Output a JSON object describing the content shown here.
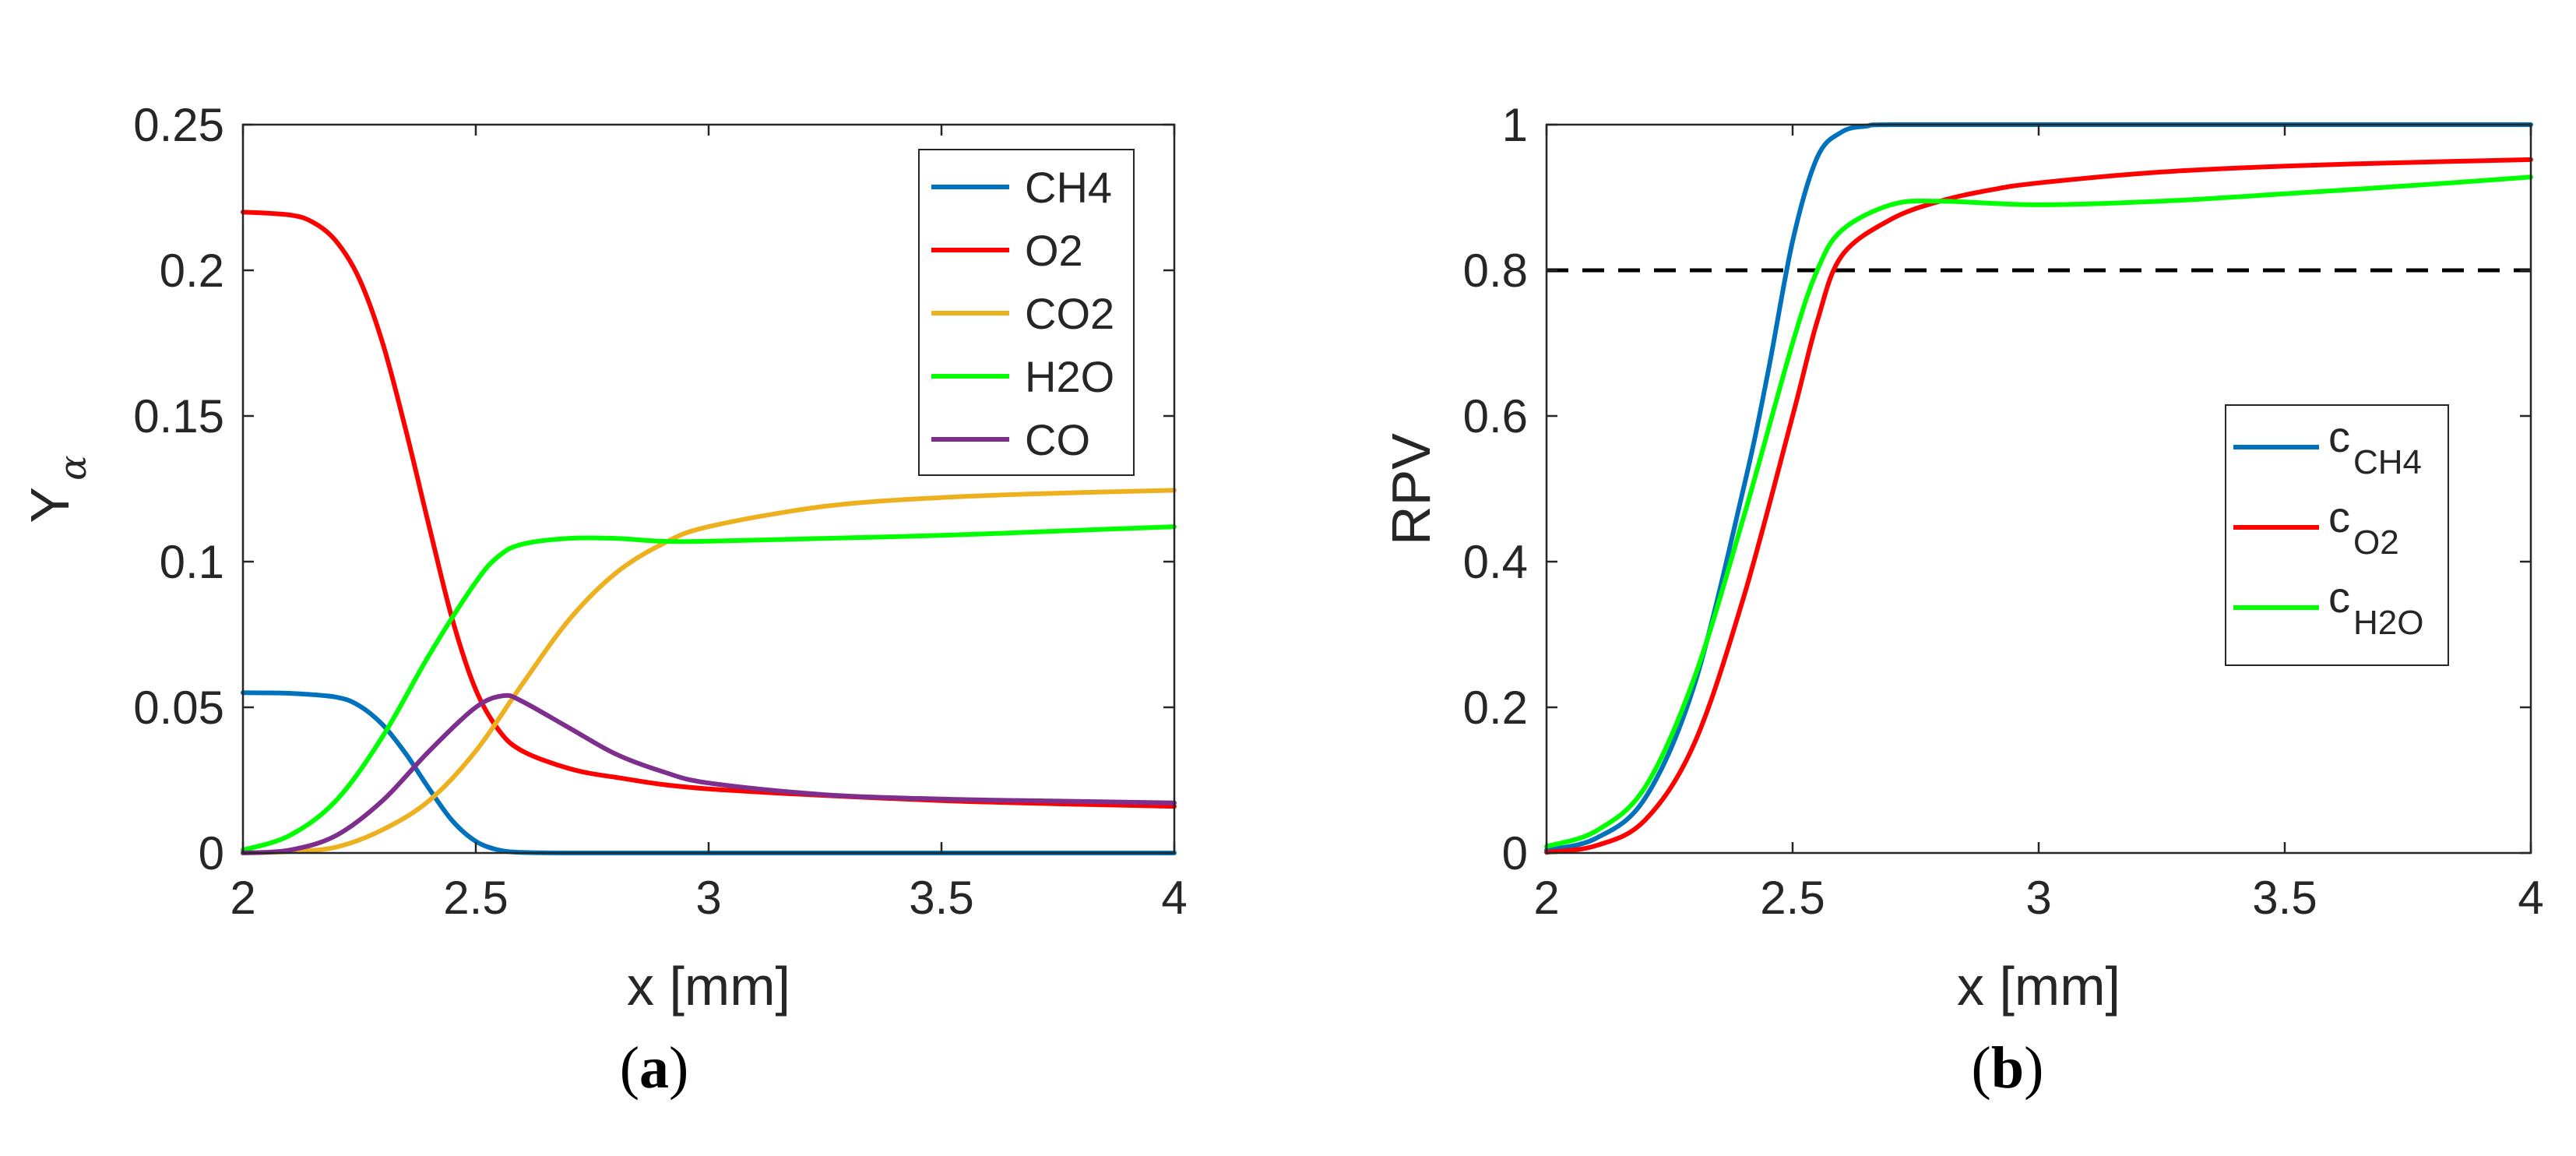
{
  "chart_data": [
    {
      "type": "line",
      "panel_label": {
        "open": "(",
        "letter": "a",
        "close": ")"
      },
      "xlabel": "x [mm]",
      "ylabel": {
        "main": "Y",
        "sub": "α"
      },
      "xlim": [
        2,
        4
      ],
      "ylim": [
        0,
        0.25
      ],
      "xticks": [
        2,
        2.5,
        3,
        3.5,
        4
      ],
      "xtick_labels": [
        "2",
        "2.5",
        "3",
        "3.5",
        "4"
      ],
      "yticks": [
        0,
        0.05,
        0.1,
        0.15,
        0.2,
        0.25
      ],
      "ytick_labels": [
        "0",
        "0.05",
        "0.1",
        "0.15",
        "0.2",
        "0.25"
      ],
      "grid": false,
      "legend_position": "top-right",
      "series": [
        {
          "name": "CH4",
          "label": "CH4",
          "color": "#0072BD",
          "points": [
            [
              2.0,
              0.055
            ],
            [
              2.1,
              0.0548
            ],
            [
              2.2,
              0.0535
            ],
            [
              2.25,
              0.0505
            ],
            [
              2.3,
              0.044
            ],
            [
              2.35,
              0.034
            ],
            [
              2.4,
              0.022
            ],
            [
              2.45,
              0.011
            ],
            [
              2.5,
              0.004
            ],
            [
              2.55,
              0.001
            ],
            [
              2.6,
              0.0002
            ],
            [
              2.7,
              0.0
            ],
            [
              3.0,
              0.0
            ],
            [
              3.5,
              0.0
            ],
            [
              4.0,
              0.0
            ]
          ]
        },
        {
          "name": "O2",
          "label": "O2",
          "color": "#FF0000",
          "points": [
            [
              2.0,
              0.22
            ],
            [
              2.1,
              0.219
            ],
            [
              2.15,
              0.2165
            ],
            [
              2.2,
              0.21
            ],
            [
              2.25,
              0.197
            ],
            [
              2.3,
              0.175
            ],
            [
              2.35,
              0.145
            ],
            [
              2.4,
              0.112
            ],
            [
              2.45,
              0.08
            ],
            [
              2.5,
              0.056
            ],
            [
              2.55,
              0.042
            ],
            [
              2.6,
              0.035
            ],
            [
              2.7,
              0.029
            ],
            [
              2.8,
              0.026
            ],
            [
              3.0,
              0.022
            ],
            [
              3.5,
              0.018
            ],
            [
              4.0,
              0.016
            ]
          ]
        },
        {
          "name": "CO2",
          "label": "CO2",
          "color": "#EDB120",
          "points": [
            [
              2.0,
              0.0
            ],
            [
              2.1,
              0.0005
            ],
            [
              2.2,
              0.002
            ],
            [
              2.3,
              0.008
            ],
            [
              2.4,
              0.018
            ],
            [
              2.5,
              0.035
            ],
            [
              2.6,
              0.058
            ],
            [
              2.7,
              0.08
            ],
            [
              2.8,
              0.096
            ],
            [
              2.9,
              0.106
            ],
            [
              3.0,
              0.112
            ],
            [
              3.25,
              0.119
            ],
            [
              3.5,
              0.122
            ],
            [
              3.75,
              0.1235
            ],
            [
              4.0,
              0.1245
            ]
          ]
        },
        {
          "name": "H2O",
          "label": "H2O",
          "color": "#00FF00",
          "points": [
            [
              2.0,
              0.001
            ],
            [
              2.1,
              0.006
            ],
            [
              2.2,
              0.018
            ],
            [
              2.3,
              0.04
            ],
            [
              2.4,
              0.068
            ],
            [
              2.5,
              0.093
            ],
            [
              2.55,
              0.102
            ],
            [
              2.6,
              0.106
            ],
            [
              2.7,
              0.108
            ],
            [
              2.8,
              0.108
            ],
            [
              2.9,
              0.107
            ],
            [
              3.0,
              0.107
            ],
            [
              3.25,
              0.108
            ],
            [
              3.5,
              0.109
            ],
            [
              3.75,
              0.1105
            ],
            [
              4.0,
              0.112
            ]
          ]
        },
        {
          "name": "CO",
          "label": "CO",
          "color": "#7E2F8E",
          "points": [
            [
              2.0,
              0.0
            ],
            [
              2.1,
              0.001
            ],
            [
              2.2,
              0.006
            ],
            [
              2.3,
              0.018
            ],
            [
              2.4,
              0.035
            ],
            [
              2.5,
              0.05
            ],
            [
              2.56,
              0.054
            ],
            [
              2.6,
              0.052
            ],
            [
              2.7,
              0.043
            ],
            [
              2.8,
              0.034
            ],
            [
              2.9,
              0.028
            ],
            [
              3.0,
              0.024
            ],
            [
              3.25,
              0.02
            ],
            [
              3.5,
              0.0185
            ],
            [
              3.75,
              0.0178
            ],
            [
              4.0,
              0.0172
            ]
          ]
        }
      ]
    },
    {
      "type": "line",
      "panel_label": {
        "open": "(",
        "letter": "b",
        "close": ")"
      },
      "xlabel": "x [mm]",
      "ylabel": {
        "main": "RPV"
      },
      "xlim": [
        2,
        4
      ],
      "ylim": [
        0,
        1
      ],
      "xticks": [
        2,
        2.5,
        3,
        3.5,
        4
      ],
      "xtick_labels": [
        "2",
        "2.5",
        "3",
        "3.5",
        "4"
      ],
      "yticks": [
        0,
        0.2,
        0.4,
        0.6,
        0.8,
        1
      ],
      "ytick_labels": [
        "0",
        "0.2",
        "0.4",
        "0.6",
        "0.8",
        "1"
      ],
      "grid": false,
      "legend_position": "center-right",
      "reference_line": {
        "y": 0.8,
        "color": "#000000",
        "style": "dashed"
      },
      "series": [
        {
          "name": "c_CH4",
          "label": "c",
          "label_sub": "CH4",
          "color": "#0072BD",
          "points": [
            [
              2.0,
              0.004
            ],
            [
              2.1,
              0.02
            ],
            [
              2.2,
              0.075
            ],
            [
              2.3,
              0.23
            ],
            [
              2.4,
              0.5
            ],
            [
              2.45,
              0.66
            ],
            [
              2.5,
              0.84
            ],
            [
              2.55,
              0.955
            ],
            [
              2.6,
              0.99
            ],
            [
              2.65,
              0.998
            ],
            [
              2.7,
              1.0
            ],
            [
              3.0,
              1.0
            ],
            [
              3.5,
              1.0
            ],
            [
              4.0,
              1.0
            ]
          ]
        },
        {
          "name": "c_O2",
          "label": "c",
          "label_sub": "O2",
          "color": "#FF0000",
          "points": [
            [
              2.0,
              0.001
            ],
            [
              2.1,
              0.01
            ],
            [
              2.2,
              0.045
            ],
            [
              2.3,
              0.15
            ],
            [
              2.4,
              0.35
            ],
            [
              2.5,
              0.6
            ],
            [
              2.55,
              0.73
            ],
            [
              2.6,
              0.82
            ],
            [
              2.7,
              0.87
            ],
            [
              2.8,
              0.895
            ],
            [
              2.9,
              0.91
            ],
            [
              3.0,
              0.92
            ],
            [
              3.25,
              0.935
            ],
            [
              3.5,
              0.943
            ],
            [
              3.75,
              0.948
            ],
            [
              4.0,
              0.952
            ]
          ]
        },
        {
          "name": "c_H2O",
          "label": "c",
          "label_sub": "H2O",
          "color": "#00FF00",
          "points": [
            [
              2.0,
              0.009
            ],
            [
              2.1,
              0.03
            ],
            [
              2.2,
              0.09
            ],
            [
              2.3,
              0.24
            ],
            [
              2.4,
              0.46
            ],
            [
              2.5,
              0.7
            ],
            [
              2.55,
              0.8
            ],
            [
              2.6,
              0.855
            ],
            [
              2.7,
              0.89
            ],
            [
              2.8,
              0.895
            ],
            [
              3.0,
              0.89
            ],
            [
              3.25,
              0.895
            ],
            [
              3.5,
              0.905
            ],
            [
              3.75,
              0.916
            ],
            [
              4.0,
              0.928
            ]
          ]
        }
      ]
    }
  ]
}
